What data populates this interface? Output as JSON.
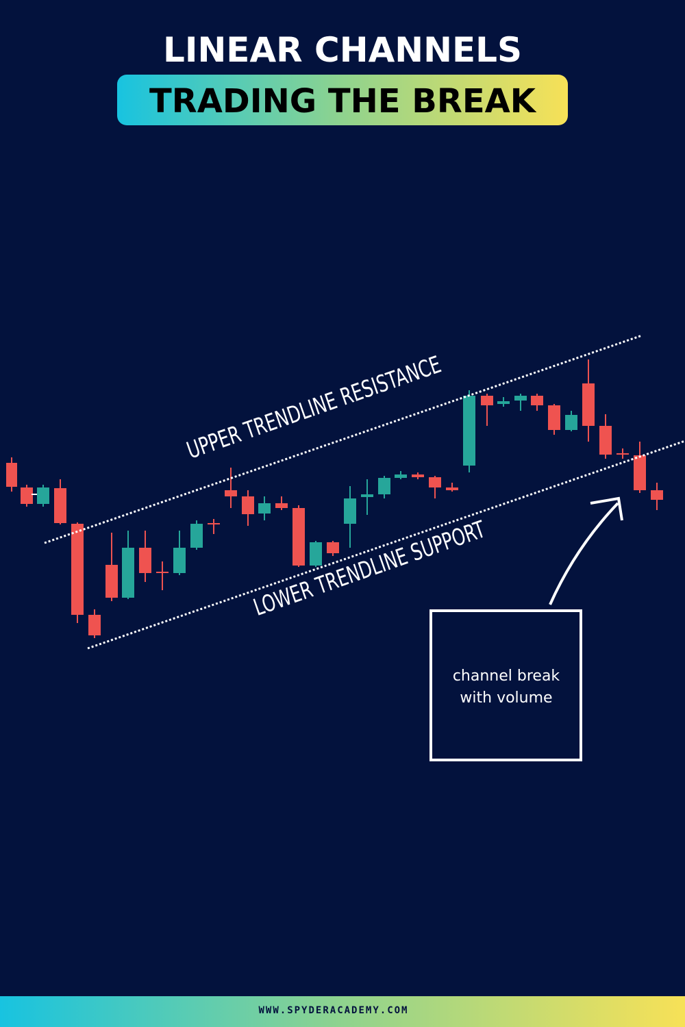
{
  "header": {
    "title": "LINEAR CHANNELS",
    "subtitle": "TRADING THE BREAK"
  },
  "annotations": {
    "upper": "UPPER TRENDLINE RESISTANCE",
    "lower": "LOWER TRENDLINE SUPPORT"
  },
  "callout": {
    "lines": [
      "channel break",
      "with volume"
    ]
  },
  "footer": {
    "url": "WWW.SPYDERACADEMY.COM"
  }
}
